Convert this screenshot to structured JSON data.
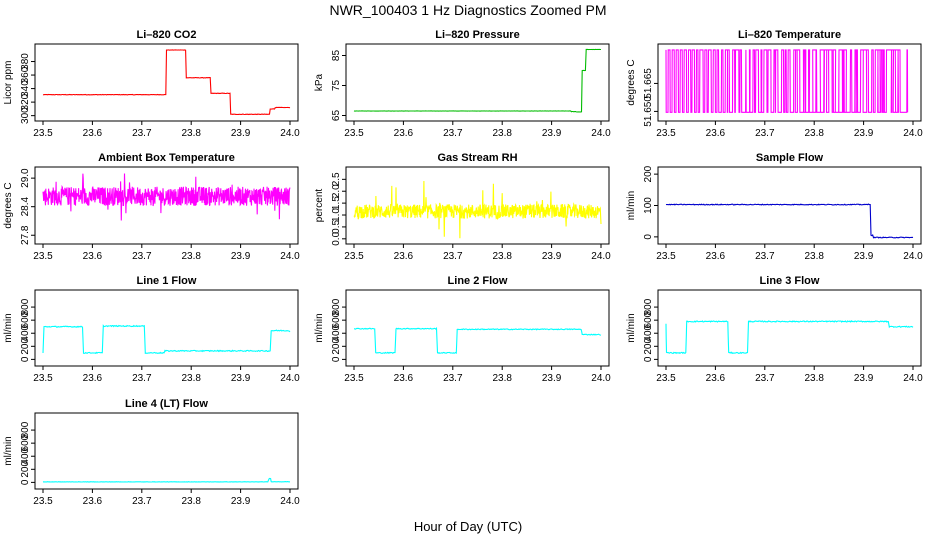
{
  "page": {
    "title": "NWR_100403  1 Hz Diagnostics Zoomed PM",
    "xlabel": "Hour of Day (UTC)"
  },
  "chart_data": [
    {
      "id": "co2",
      "type": "line",
      "title": "Li–820 CO2",
      "ylabel": "Licor ppm",
      "color": "#ff0000",
      "x_ticks": [
        "23.5",
        "23.6",
        "23.7",
        "23.8",
        "23.9",
        "24.0"
      ],
      "xlim": [
        23.5,
        24.0
      ],
      "y_ticks": [
        "300",
        "320",
        "340",
        "360",
        "380"
      ],
      "y_tick_values": [
        300,
        320,
        340,
        360,
        380
      ],
      "ylim": [
        298,
        400
      ],
      "series": [
        {
          "name": "CO2",
          "noise": 0.3,
          "steps": [
            [
              23.5,
              331
            ],
            [
              23.75,
              397
            ],
            [
              23.76,
              397
            ],
            [
              23.78,
              397
            ],
            [
              23.79,
              356
            ],
            [
              23.82,
              356
            ],
            [
              23.84,
              333
            ],
            [
              23.88,
              302
            ],
            [
              23.89,
              302
            ],
            [
              23.96,
              310
            ],
            [
              23.97,
              312
            ],
            [
              24.0,
              312
            ]
          ]
        }
      ]
    },
    {
      "id": "pressure",
      "type": "line",
      "title": "Li–820 Pressure",
      "ylabel": "kPa",
      "color": "#00bb00",
      "x_ticks": [
        "23.5",
        "23.6",
        "23.7",
        "23.8",
        "23.9",
        "24.0"
      ],
      "xlim": [
        23.5,
        24.0
      ],
      "y_ticks": [
        "65",
        "75",
        "85"
      ],
      "y_tick_values": [
        65,
        75,
        85
      ],
      "ylim": [
        64.5,
        87.5
      ],
      "series": [
        {
          "name": "Pressure",
          "noise": 0.05,
          "steps": [
            [
              23.5,
              66.5
            ],
            [
              23.94,
              66.3
            ],
            [
              23.95,
              66.2
            ],
            [
              23.962,
              80
            ],
            [
              23.97,
              87
            ],
            [
              24.0,
              87
            ]
          ]
        }
      ]
    },
    {
      "id": "licor_temp",
      "type": "line",
      "title": "Li–820 Temperature",
      "ylabel": "degrees C",
      "color": "#ff00ff",
      "x_ticks": [
        "23.5",
        "23.6",
        "23.7",
        "23.8",
        "23.9",
        "24.0"
      ],
      "xlim": [
        23.5,
        24.0
      ],
      "y_ticks": [
        "51.650",
        "51.665"
      ],
      "y_tick_values": [
        51.65,
        51.665
      ],
      "ylim": [
        51.647,
        51.684
      ],
      "series": [
        {
          "name": "Temperature",
          "pattern": "binary",
          "low": 51.6495,
          "high": 51.683,
          "toggles": 120
        }
      ]
    },
    {
      "id": "ambient_temp",
      "type": "line",
      "title": "Ambient Box Temperature",
      "ylabel": "degrees C",
      "color": "#ff00ff",
      "x_ticks": [
        "23.5",
        "23.6",
        "23.7",
        "23.8",
        "23.9",
        "24.0"
      ],
      "xlim": [
        23.5,
        24.0
      ],
      "y_ticks": [
        "27.8",
        "28.4",
        "29.0"
      ],
      "y_tick_values": [
        27.8,
        28.4,
        29.0
      ],
      "ylim": [
        27.7,
        29.15
      ],
      "series": [
        {
          "name": "Ambient",
          "noise": 0.2,
          "center": 28.62,
          "spikes": 0.55
        }
      ]
    },
    {
      "id": "rh",
      "type": "line",
      "title": "Gas Stream RH",
      "ylabel": "percent",
      "color": "#ffff00",
      "x_ticks": [
        "23.5",
        "23.6",
        "23.7",
        "23.8",
        "23.9",
        "24.0"
      ],
      "xlim": [
        23.5,
        24.0
      ],
      "y_ticks": [
        "0.0",
        "0.5",
        "1.0",
        "1.5",
        "2.0",
        "2.5"
      ],
      "y_tick_values": [
        0,
        0.5,
        1.0,
        1.5,
        2.0,
        2.5
      ],
      "ylim": [
        -0.05,
        2.85
      ],
      "series": [
        {
          "name": "RH",
          "noise": 0.3,
          "center": 1.15,
          "spikes": 1.4
        }
      ]
    },
    {
      "id": "sample_flow",
      "type": "line",
      "title": "Sample Flow",
      "ylabel": "ml/min",
      "color": "#0000cc",
      "x_ticks": [
        "23.5",
        "23.6",
        "23.7",
        "23.8",
        "23.9",
        "24.0"
      ],
      "xlim": [
        23.5,
        24.0
      ],
      "y_ticks": [
        "0",
        "100",
        "200"
      ],
      "y_tick_values": [
        0,
        100,
        200
      ],
      "ylim": [
        -10,
        210
      ],
      "series": [
        {
          "name": "Sample Flow",
          "noise": 1.2,
          "steps": [
            [
              23.5,
              103
            ],
            [
              23.91,
              104
            ],
            [
              23.915,
              5
            ],
            [
              23.92,
              -2
            ],
            [
              24.0,
              -2
            ]
          ]
        }
      ]
    },
    {
      "id": "line1",
      "type": "line",
      "title": "Line 1 Flow",
      "ylabel": "ml/min",
      "color": "#00ffff",
      "x_ticks": [
        "23.5",
        "23.6",
        "23.7",
        "23.8",
        "23.9",
        "24.0"
      ],
      "xlim": [
        23.5,
        24.0
      ],
      "y_ticks": [
        "0",
        "200",
        "400",
        "600",
        "800"
      ],
      "y_tick_values": [
        0,
        200,
        400,
        600,
        800
      ],
      "ylim": [
        -40,
        1000
      ],
      "series": [
        {
          "name": "Line 1",
          "noise": 8,
          "steps": [
            [
              23.5,
              100
            ],
            [
              23.502,
              500
            ],
            [
              23.58,
              500
            ],
            [
              23.582,
              100
            ],
            [
              23.62,
              100
            ],
            [
              23.622,
              510
            ],
            [
              23.705,
              510
            ],
            [
              23.707,
              100
            ],
            [
              23.745,
              100
            ],
            [
              23.747,
              130
            ],
            [
              23.96,
              130
            ],
            [
              23.962,
              440
            ],
            [
              24.0,
              420
            ]
          ]
        }
      ]
    },
    {
      "id": "line2",
      "type": "line",
      "title": "Line 2 Flow",
      "ylabel": "ml/min",
      "color": "#00ffff",
      "x_ticks": [
        "23.5",
        "23.6",
        "23.7",
        "23.8",
        "23.9",
        "24.0"
      ],
      "xlim": [
        23.5,
        24.0
      ],
      "y_ticks": [
        "0",
        "200",
        "400",
        "600",
        "800"
      ],
      "y_tick_values": [
        0,
        200,
        400,
        600,
        800
      ],
      "ylim": [
        -40,
        1000
      ],
      "series": [
        {
          "name": "Line 2",
          "noise": 7,
          "steps": [
            [
              23.5,
              470
            ],
            [
              23.542,
              470
            ],
            [
              23.544,
              100
            ],
            [
              23.583,
              100
            ],
            [
              23.585,
              470
            ],
            [
              23.667,
              470
            ],
            [
              23.669,
              100
            ],
            [
              23.707,
              100
            ],
            [
              23.709,
              460
            ],
            [
              23.96,
              460
            ],
            [
              23.962,
              380
            ],
            [
              24.0,
              370
            ]
          ]
        }
      ]
    },
    {
      "id": "line3",
      "type": "line",
      "title": "Line 3 Flow",
      "ylabel": "ml/min",
      "color": "#00ffff",
      "x_ticks": [
        "23.5",
        "23.6",
        "23.7",
        "23.8",
        "23.9",
        "24.0"
      ],
      "xlim": [
        23.5,
        24.0
      ],
      "y_ticks": [
        "0",
        "200",
        "400",
        "600",
        "800"
      ],
      "y_tick_values": [
        0,
        200,
        400,
        600,
        800
      ],
      "ylim": [
        -40,
        1000
      ],
      "series": [
        {
          "name": "Line 3",
          "noise": 8,
          "steps": [
            [
              23.5,
              540
            ],
            [
              23.501,
              100
            ],
            [
              23.54,
              100
            ],
            [
              23.542,
              580
            ],
            [
              23.625,
              580
            ],
            [
              23.627,
              100
            ],
            [
              23.665,
              100
            ],
            [
              23.667,
              580
            ],
            [
              23.95,
              580
            ],
            [
              23.952,
              500
            ],
            [
              24.0,
              490
            ]
          ]
        }
      ]
    },
    {
      "id": "line4",
      "type": "line",
      "title": "Line 4 (LT) Flow",
      "ylabel": "ml/min",
      "color": "#00ffff",
      "x_ticks": [
        "23.5",
        "23.6",
        "23.7",
        "23.8",
        "23.9",
        "24.0"
      ],
      "xlim": [
        23.5,
        24.0
      ],
      "y_ticks": [
        "0",
        "200",
        "400",
        "600",
        "800"
      ],
      "y_tick_values": [
        0,
        200,
        400,
        600,
        800
      ],
      "ylim": [
        -40,
        1000
      ],
      "series": [
        {
          "name": "Line 4",
          "noise": 2,
          "steps": [
            [
              23.5,
              8
            ],
            [
              23.955,
              8
            ],
            [
              23.958,
              60
            ],
            [
              23.962,
              10
            ],
            [
              24.0,
              8
            ]
          ]
        }
      ]
    }
  ]
}
